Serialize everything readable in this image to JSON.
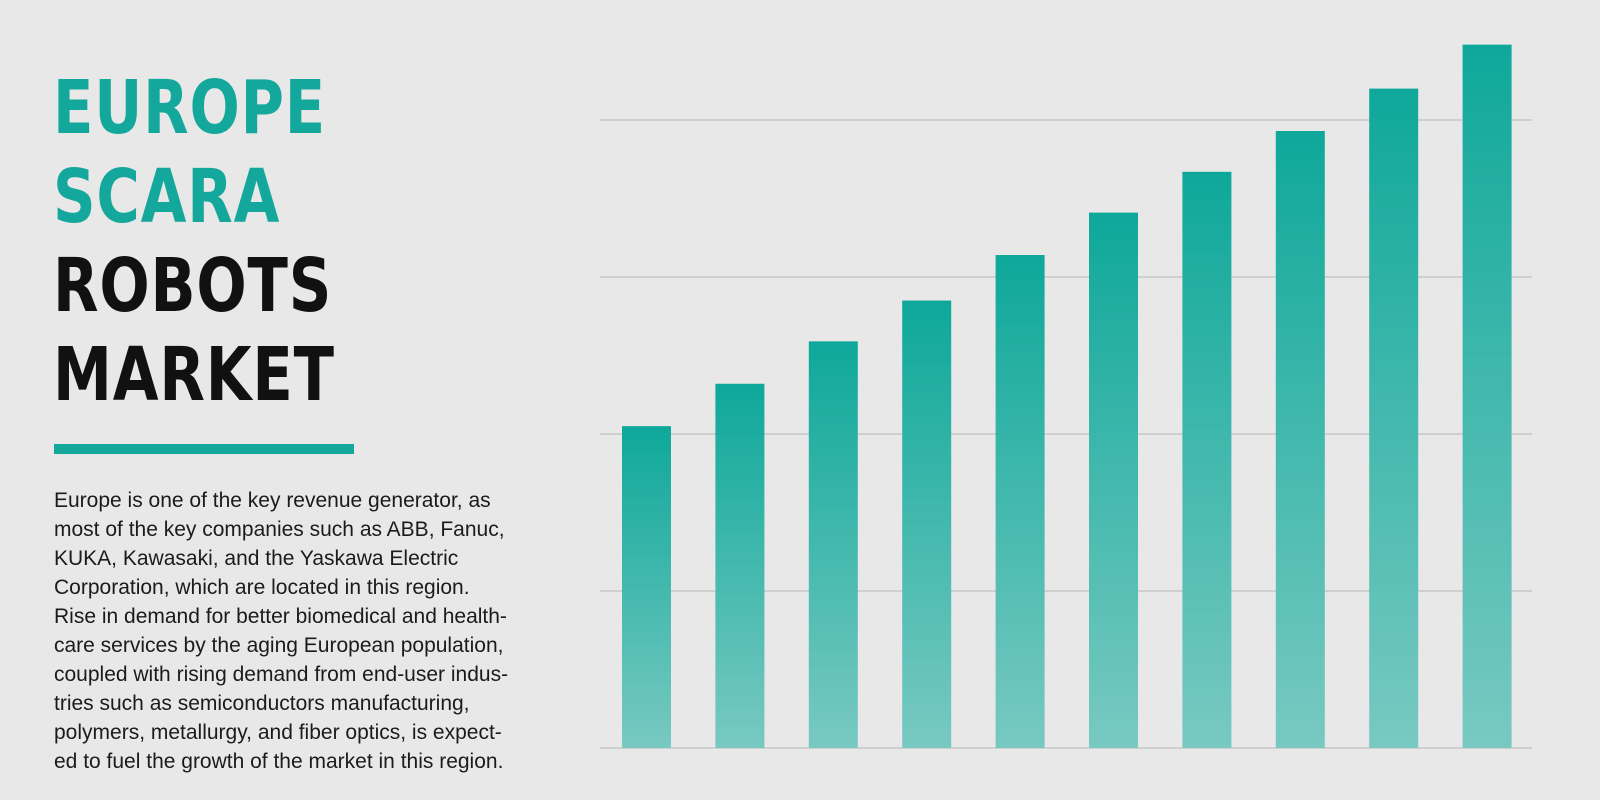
{
  "title": {
    "lines": [
      {
        "text": "EUROPE",
        "style": "accent"
      },
      {
        "text": "SCARA",
        "style": "accent"
      },
      {
        "text": "ROBOTS",
        "style": "dark"
      },
      {
        "text": "MARKET",
        "style": "dark"
      }
    ]
  },
  "colors": {
    "accent": "#14a89c",
    "bar_top": "#0ea89a",
    "bar_bottom": "#78c9c1",
    "grid": "#cfcfcf",
    "background": "#e8e8e8"
  },
  "description": {
    "lines": [
      "Europe is one of the key revenue generator, as",
      "most of the key companies such as ABB, Fanuc,",
      "KUKA, Kawasaki, and the Yaskawa Electric",
      "Corporation, which are located in this region.",
      "Rise in demand for better biomedical and health-",
      "care services by the aging European population,",
      "coupled with rising demand from end-user indus-",
      "tries such as semiconductors manufacturing,",
      "polymers, metallurgy, and fiber optics, is expect-",
      "ed to fuel the growth of the market in this region."
    ]
  },
  "chart_data": {
    "type": "bar",
    "categories": [
      "",
      "",
      "",
      "",
      "",
      "",
      "",
      "",
      "",
      ""
    ],
    "values": [
      20.5,
      23.2,
      25.9,
      28.5,
      31.4,
      34.1,
      36.7,
      39.3,
      42.0,
      44.8
    ],
    "title": "",
    "xlabel": "",
    "ylabel": "",
    "ylim": [
      0,
      40
    ],
    "gridlines": [
      10,
      20,
      30,
      40
    ],
    "grid": true,
    "legend": "none"
  }
}
